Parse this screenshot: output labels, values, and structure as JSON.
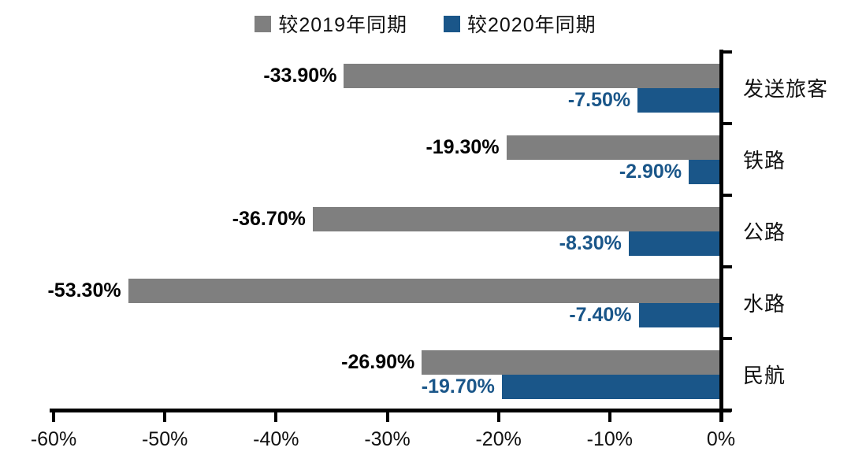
{
  "chart_data": {
    "type": "bar",
    "orientation": "horizontal",
    "title": "",
    "categories": [
      "发送旅客",
      "铁路",
      "公路",
      "水路",
      "民航"
    ],
    "series": [
      {
        "name": "较2019年同期",
        "color": "#7F7F7F",
        "label_color": "#000000",
        "values": [
          -33.9,
          -19.3,
          -36.7,
          -53.3,
          -26.9
        ],
        "labels": [
          "-33.90%",
          "-19.30%",
          "-36.70%",
          "-53.30%",
          "-26.90%"
        ]
      },
      {
        "name": "较2020年同期",
        "color": "#1A5689",
        "label_color": "#1A5689",
        "values": [
          -7.5,
          -2.9,
          -8.3,
          -7.4,
          -19.7
        ],
        "labels": [
          "-7.50%",
          "-2.90%",
          "-8.30%",
          "-7.40%",
          "-19.70%"
        ]
      }
    ],
    "x_axis": {
      "min": -60,
      "max": 0,
      "tick_step": 10,
      "tick_labels": [
        "-60%",
        "-50%",
        "-40%",
        "-30%",
        "-20%",
        "-10%",
        "0%"
      ]
    },
    "legend_position": "top",
    "grid": false,
    "axis_color": "#000000",
    "background_color": "#FFFFFF"
  }
}
